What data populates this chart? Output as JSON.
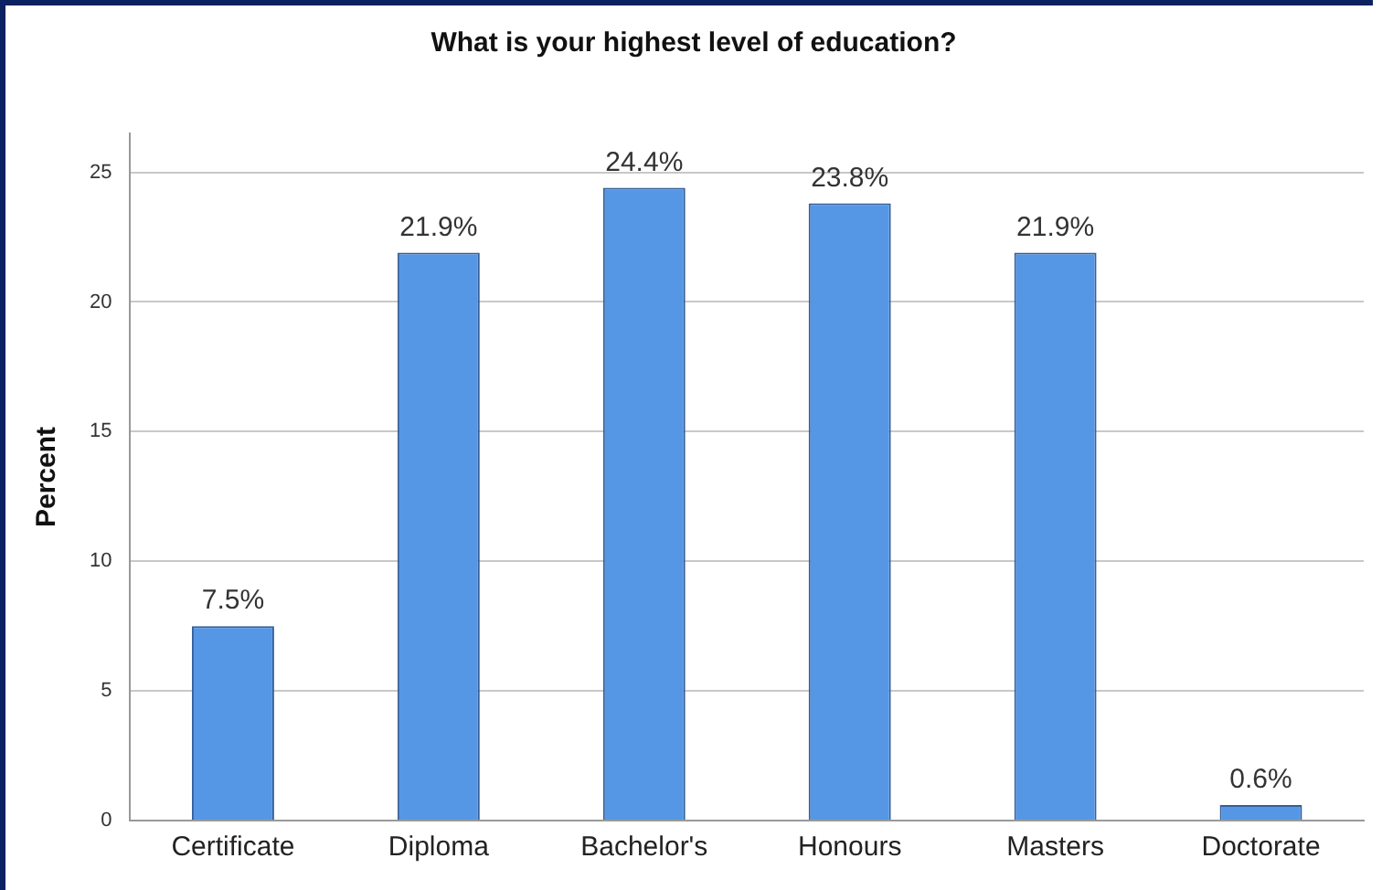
{
  "chart_data": {
    "type": "bar",
    "title": "What is your highest level of education?",
    "ylabel": "Percent",
    "categories": [
      "Certificate",
      "Diploma",
      "Bachelor's",
      "Honours",
      "Masters",
      "Doctorate"
    ],
    "values": [
      7.5,
      21.9,
      24.4,
      23.8,
      21.9,
      0.6
    ],
    "value_labels": [
      "7.5%",
      "21.9%",
      "24.4%",
      "23.8%",
      "21.9%",
      "0.6%"
    ],
    "color": "#5597e5",
    "ylim": [
      0,
      26.5
    ],
    "yticks": [
      0,
      5,
      10,
      15,
      20,
      25
    ],
    "grid": "y",
    "legend": false
  }
}
